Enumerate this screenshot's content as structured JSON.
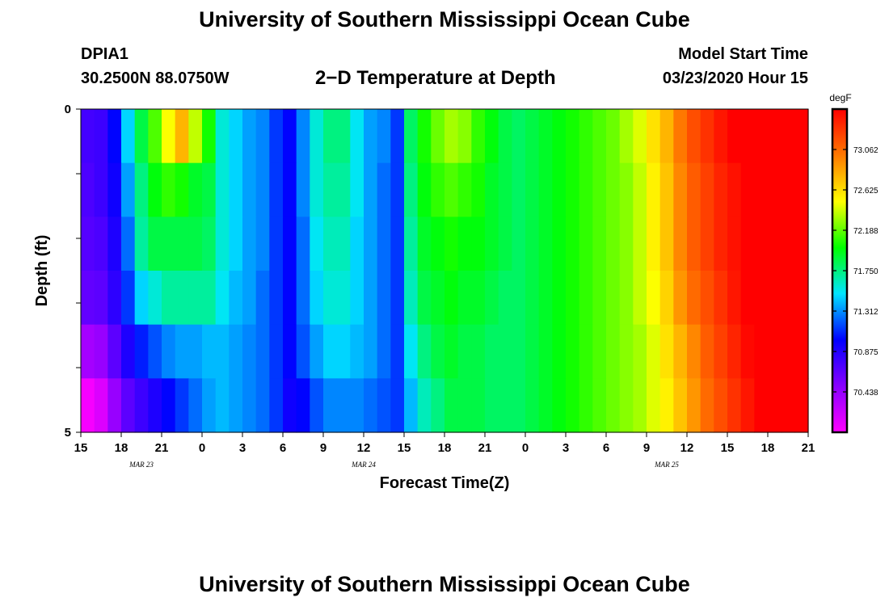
{
  "header": {
    "title": "University of Southern Mississippi Ocean Cube",
    "station_id": "DPIA1",
    "station_coords": "30.2500N 88.0750W",
    "plot_title": "2−D Temperature at Depth",
    "model_start_label": "Model Start Time",
    "model_start_value": "03/23/2020 Hour 15"
  },
  "footer": {
    "title": "University of Southern Mississippi Ocean Cube"
  },
  "chart_data": {
    "type": "heatmap",
    "title": "2−D Temperature at Depth",
    "xlabel": "Forecast Time(Z)",
    "ylabel": "Depth (ft)",
    "x_tick_labels": [
      "15",
      "18",
      "21",
      "0",
      "3",
      "6",
      "9",
      "12",
      "15",
      "18",
      "21",
      "0",
      "3",
      "6",
      "9",
      "12",
      "15",
      "18",
      "21"
    ],
    "x_range_hours": [
      0,
      54
    ],
    "date_labels": [
      {
        "text": "MAR 23",
        "hour": 4.5
      },
      {
        "text": "MAR 24",
        "hour": 21
      },
      {
        "text": "MAR 25",
        "hour": 43.5
      }
    ],
    "ylim": [
      0,
      5
    ],
    "y_tick_labels": [
      "0",
      "5"
    ],
    "depth_rows": [
      0,
      1,
      2,
      3,
      4,
      5
    ],
    "time_step_hours": 1,
    "colorbar": {
      "unit": "degF",
      "min": 70.22,
      "max": 73.28,
      "labels": [
        "73.062",
        "72.625",
        "72.188",
        "71.750",
        "71.312",
        "70.875",
        "70.438"
      ],
      "colors": [
        "#ff00ff",
        "#8800ff",
        "#0000ff",
        "#00e5ff",
        "#00ff00",
        "#ffff00",
        "#ff7a00",
        "#ff0000"
      ]
    },
    "series": [
      {
        "depth": 0,
        "values": [
          70.88,
          70.9,
          71.1,
          71.5,
          71.85,
          72.1,
          72.4,
          72.65,
          72.3,
          72.0,
          71.6,
          71.5,
          71.4,
          71.35,
          71.2,
          71.1,
          71.35,
          71.6,
          71.75,
          71.75,
          71.55,
          71.4,
          71.35,
          71.2,
          71.8,
          72.0,
          72.15,
          72.25,
          72.2,
          72.05,
          71.95,
          71.85,
          71.8,
          71.85,
          71.9,
          71.95,
          72.0,
          72.05,
          72.1,
          72.15,
          72.25,
          72.35,
          72.5,
          72.65,
          72.85,
          73.0,
          73.1,
          73.2,
          73.28,
          73.28,
          73.28,
          73.28,
          73.28,
          73.28
        ]
      },
      {
        "depth": 1,
        "values": [
          70.85,
          70.9,
          71.05,
          71.4,
          71.75,
          71.95,
          72.05,
          72.0,
          71.9,
          71.85,
          71.6,
          71.5,
          71.4,
          71.35,
          71.2,
          71.1,
          71.35,
          71.6,
          71.7,
          71.7,
          71.55,
          71.4,
          71.3,
          71.2,
          71.75,
          71.95,
          72.05,
          72.1,
          72.05,
          72.0,
          71.9,
          71.85,
          71.8,
          71.85,
          71.9,
          71.95,
          72.0,
          72.05,
          72.1,
          72.15,
          72.2,
          72.3,
          72.45,
          72.6,
          72.8,
          72.95,
          73.05,
          73.15,
          73.22,
          73.28,
          73.28,
          73.28,
          73.28,
          73.28
        ]
      },
      {
        "depth": 2,
        "values": [
          70.82,
          70.85,
          71.0,
          71.3,
          71.7,
          71.85,
          71.85,
          71.85,
          71.85,
          71.8,
          71.6,
          71.5,
          71.4,
          71.35,
          71.2,
          71.1,
          71.3,
          71.55,
          71.65,
          71.65,
          71.5,
          71.4,
          71.3,
          71.2,
          71.7,
          71.9,
          71.95,
          72.0,
          71.95,
          71.95,
          71.9,
          71.85,
          71.8,
          71.85,
          71.9,
          71.95,
          72.0,
          72.05,
          72.1,
          72.15,
          72.2,
          72.3,
          72.45,
          72.6,
          72.8,
          72.95,
          73.05,
          73.15,
          73.22,
          73.28,
          73.28,
          73.28,
          73.28,
          73.28
        ]
      },
      {
        "depth": 3,
        "values": [
          70.78,
          70.8,
          70.95,
          71.2,
          71.5,
          71.6,
          71.7,
          71.7,
          71.7,
          71.7,
          71.55,
          71.45,
          71.4,
          71.3,
          71.2,
          71.1,
          71.3,
          71.5,
          71.6,
          71.6,
          71.5,
          71.4,
          71.3,
          71.2,
          71.65,
          71.85,
          71.9,
          71.95,
          71.9,
          71.9,
          71.85,
          71.8,
          71.8,
          71.85,
          71.9,
          71.95,
          72.0,
          72.05,
          72.1,
          72.15,
          72.2,
          72.3,
          72.4,
          72.55,
          72.75,
          72.9,
          73.0,
          73.1,
          73.2,
          73.28,
          73.28,
          73.28,
          73.28,
          73.28
        ]
      },
      {
        "depth": 4,
        "values": [
          70.55,
          70.6,
          70.8,
          71.0,
          71.15,
          71.25,
          71.35,
          71.4,
          71.4,
          71.45,
          71.45,
          71.4,
          71.35,
          71.3,
          71.2,
          71.1,
          71.25,
          71.4,
          71.5,
          71.5,
          71.45,
          71.4,
          71.3,
          71.2,
          71.55,
          71.75,
          71.85,
          71.9,
          71.85,
          71.85,
          71.8,
          71.8,
          71.8,
          71.85,
          71.9,
          71.95,
          72.0,
          72.05,
          72.1,
          72.15,
          72.2,
          72.25,
          72.35,
          72.5,
          72.65,
          72.8,
          72.95,
          73.05,
          73.15,
          73.25,
          73.28,
          73.28,
          73.28,
          73.28
        ]
      },
      {
        "depth": 5,
        "values": [
          70.25,
          70.35,
          70.6,
          70.8,
          70.9,
          71.0,
          71.1,
          71.2,
          71.3,
          71.4,
          71.45,
          71.4,
          71.35,
          71.3,
          71.2,
          71.05,
          71.1,
          71.25,
          71.35,
          71.35,
          71.35,
          71.3,
          71.25,
          71.2,
          71.45,
          71.65,
          71.75,
          71.85,
          71.85,
          71.85,
          71.8,
          71.8,
          71.8,
          71.85,
          71.9,
          71.95,
          72.0,
          72.05,
          72.1,
          72.15,
          72.2,
          72.25,
          72.35,
          72.45,
          72.6,
          72.75,
          72.9,
          73.0,
          73.1,
          73.2,
          73.28,
          73.28,
          73.28,
          73.28
        ]
      }
    ]
  }
}
